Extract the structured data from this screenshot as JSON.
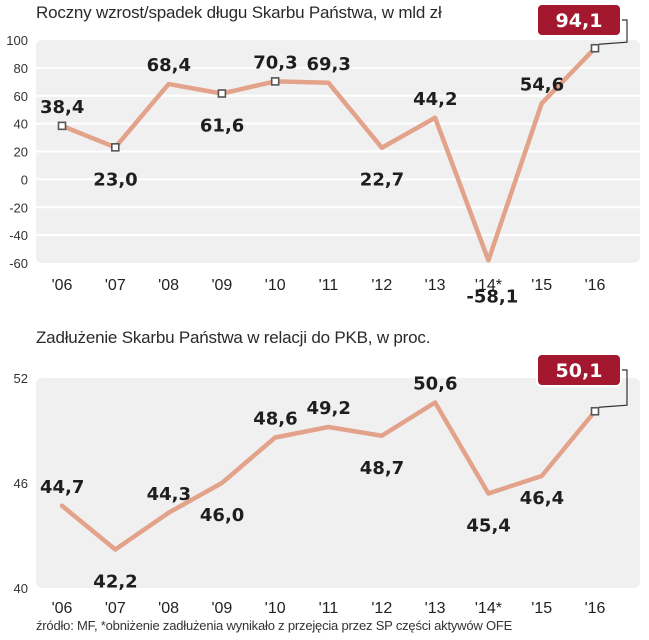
{
  "source_note": "źródło: MF, *obniżenie zadłużenia wynikało z przejęcia przez SP części aktywów OFE",
  "colors": {
    "line": "#e3a28a",
    "plot_bg": "#f0f0f0",
    "grid": "#ffffff",
    "highlight": "#a3182e",
    "marker": "#555555"
  },
  "chart_data": [
    {
      "type": "line",
      "title": "Roczny wzrost/spadek długu Skarbu Państwa, w mld zł",
      "categories": [
        "'06",
        "'07",
        "'08",
        "'09",
        "'10",
        "'11",
        "'12",
        "'13",
        "'14*",
        "'15",
        "'16"
      ],
      "values": [
        38.4,
        23.0,
        68.4,
        61.6,
        70.3,
        69.3,
        22.7,
        44.2,
        -58.1,
        54.6,
        94.1
      ],
      "value_labels": [
        "38,4",
        "23,0",
        "68,4",
        "61,6",
        "70,3",
        "69,3",
        "22,7",
        "44,2",
        "-58,1",
        "54,6",
        "94,1"
      ],
      "ylim": [
        -60,
        100
      ],
      "yticks": [
        100,
        80,
        60,
        40,
        20,
        0,
        -20,
        -40,
        -60
      ],
      "ytick_labels": [
        "100",
        "80",
        "60",
        "40",
        "20",
        "0",
        "-20",
        "-40",
        "-60"
      ],
      "markers_at": [
        "'06",
        "'07",
        "'09",
        "'10",
        "'16"
      ],
      "highlight": "'16",
      "grid": true
    },
    {
      "type": "line",
      "title": "Zadłużenie Skarbu Państwa w relacji do PKB, w proc.",
      "categories": [
        "'06",
        "'07",
        "'08",
        "'09",
        "'10",
        "'11",
        "'12",
        "'13",
        "'14*",
        "'15",
        "'16"
      ],
      "values": [
        44.7,
        42.2,
        44.3,
        46.0,
        48.6,
        49.2,
        48.7,
        50.6,
        45.4,
        46.4,
        50.1
      ],
      "value_labels": [
        "44,7",
        "42,2",
        "44,3",
        "46,0",
        "48,6",
        "49,2",
        "48,7",
        "50,6",
        "45,4",
        "46,4",
        "50,1"
      ],
      "ylim": [
        40,
        52
      ],
      "yticks": [
        52,
        46,
        40
      ],
      "ytick_labels": [
        "52",
        "46",
        "40"
      ],
      "markers_at": [
        "'16"
      ],
      "highlight": "'16",
      "grid": false
    }
  ]
}
